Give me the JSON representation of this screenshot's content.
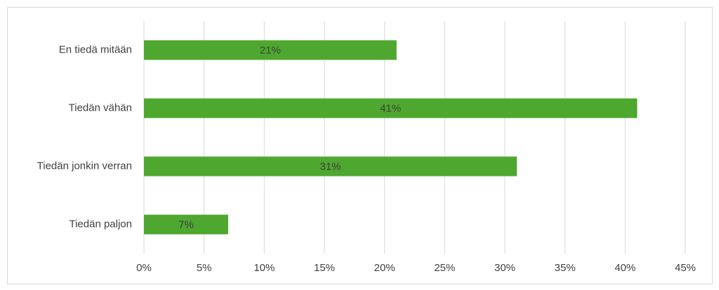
{
  "chart_data": {
    "type": "bar",
    "orientation": "horizontal",
    "categories": [
      "En tiedä mitään",
      "Tiedän vähän",
      "Tiedän jonkin verran",
      "Tiedän paljon"
    ],
    "values": [
      21,
      41,
      31,
      7
    ],
    "value_labels": [
      "21%",
      "41%",
      "31%",
      "7%"
    ],
    "color": "#4ea72e",
    "xlim": [
      0,
      45
    ],
    "xticks": [
      {
        "value": 0,
        "label": "0%"
      },
      {
        "value": 5,
        "label": "5%"
      },
      {
        "value": 10,
        "label": "10%"
      },
      {
        "value": 15,
        "label": "15%"
      },
      {
        "value": 20,
        "label": "20%"
      },
      {
        "value": 25,
        "label": "25%"
      },
      {
        "value": 30,
        "label": "30%"
      },
      {
        "value": 35,
        "label": "35%"
      },
      {
        "value": 40,
        "label": "40%"
      },
      {
        "value": 45,
        "label": "45%"
      }
    ],
    "grid": true
  }
}
